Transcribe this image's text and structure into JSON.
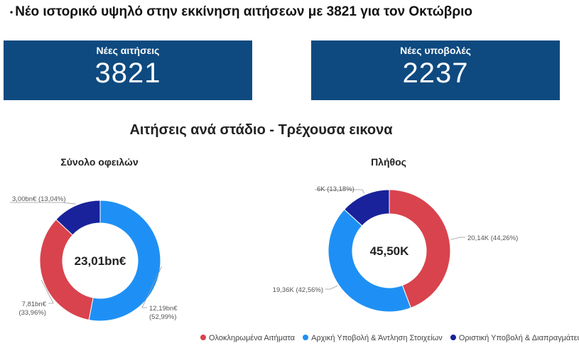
{
  "headline": {
    "bullet": "•",
    "text": "Νέο ιστορικό υψηλό στην εκκίνηση αιτήσεων με 3821 για τον Οκτώβριο"
  },
  "kpis": [
    {
      "label": "Νέες αιτήσεις",
      "value": "3821"
    },
    {
      "label": "Νέες υποβολές",
      "value": "2237"
    }
  ],
  "section_title": "Αιτήσεις ανά στάδιο - Τρέχουσα εικονα",
  "colors": {
    "completed": "#d9434d",
    "initial": "#1e90f5",
    "final": "#19229a",
    "kpi_bg": "#0e4a80"
  },
  "legend": [
    {
      "label": "Ολοκληρωμένα Αιτήματα",
      "color": "#d9434d"
    },
    {
      "label": "Αρχική Υποβολή & Άντληση Στοιχείων",
      "color": "#1e90f5"
    },
    {
      "label": "Οριστική Υποβολή & Διαπραγμάτευση",
      "color": "#19229a"
    }
  ],
  "chart_data": [
    {
      "type": "pie",
      "title": "Σύνολο οφειλών",
      "center_label": "23,01bn€",
      "slices": [
        {
          "name": "Αρχική Υποβολή & Άντληση Στοιχείων",
          "value": 12.19,
          "percent": 52.99,
          "label": [
            "12,19bn€",
            "(52,99%)"
          ],
          "color": "#1e90f5"
        },
        {
          "name": "Ολοκληρωμένα Αιτήματα",
          "value": 7.81,
          "percent": 33.96,
          "label": [
            "7,81bn€",
            "(33,96%)"
          ],
          "color": "#d9434d"
        },
        {
          "name": "Οριστική Υποβολή & Διαπραγμάτευση",
          "value": 3.0,
          "percent": 13.04,
          "label": [
            "3,00bn€ (13,04%)"
          ],
          "color": "#19229a"
        }
      ]
    },
    {
      "type": "pie",
      "title": "Πλήθος",
      "center_label": "45,50K",
      "slices": [
        {
          "name": "Ολοκληρωμένα Αιτήματα",
          "value": 20.14,
          "percent": 44.26,
          "label": [
            "20,14K (44,26%)"
          ],
          "color": "#d9434d"
        },
        {
          "name": "Αρχική Υποβολή & Άντληση Στοιχείων",
          "value": 19.36,
          "percent": 42.56,
          "label": [
            "19,36K (42,56%)"
          ],
          "color": "#1e90f5"
        },
        {
          "name": "Οριστική Υποβολή & Διαπραγμάτευση",
          "value": 6.0,
          "percent": 13.18,
          "label": [
            "6K (13,18%)"
          ],
          "color": "#19229a"
        }
      ]
    }
  ]
}
